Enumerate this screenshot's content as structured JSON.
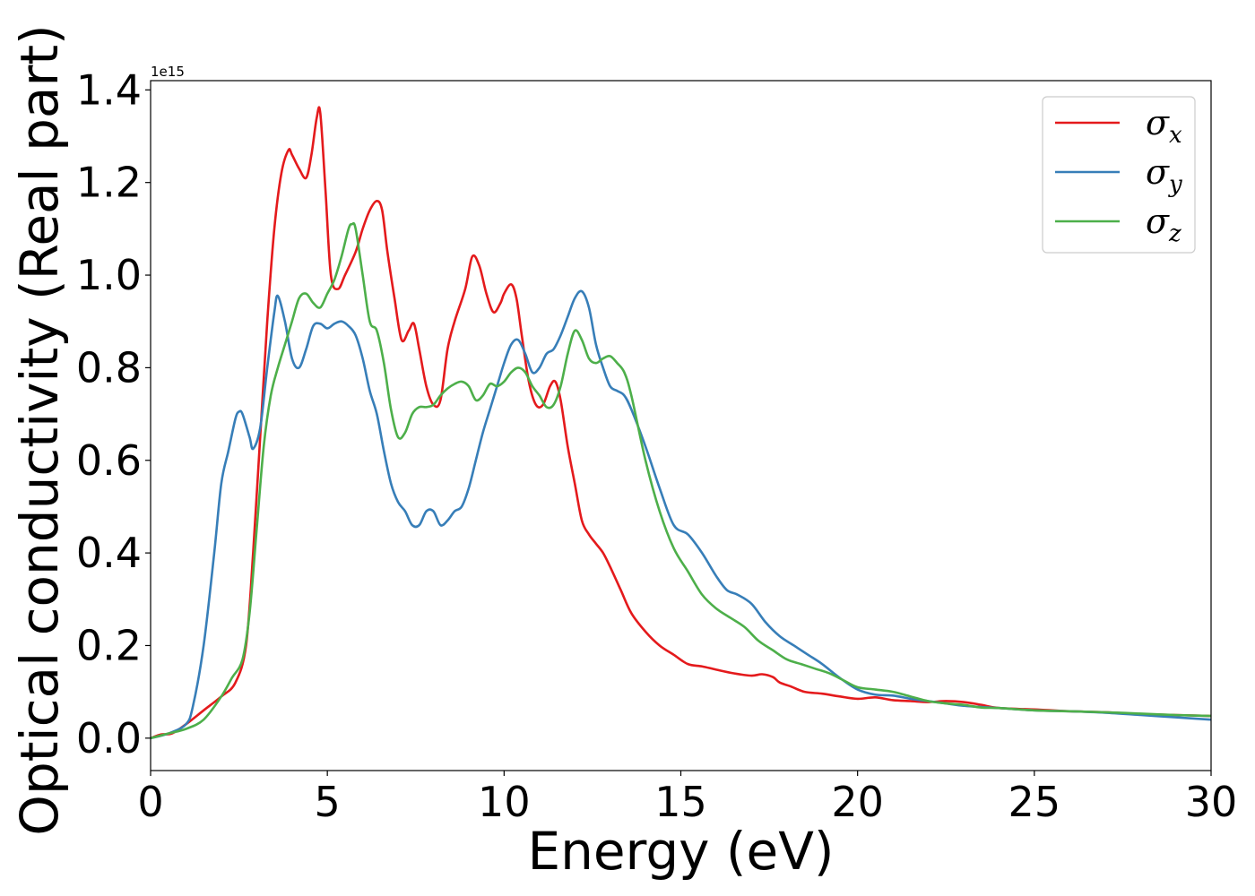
{
  "chart_data": {
    "type": "line",
    "xlabel": "Energy (eV)",
    "ylabel": "Optical conductivity (Real part)",
    "y_offset_label": "1e15",
    "xlim": [
      0,
      30
    ],
    "ylim": [
      -0.07,
      1.42
    ],
    "xticks": [
      0,
      5,
      10,
      15,
      20,
      25,
      30
    ],
    "xtick_labels": [
      "0",
      "5",
      "10",
      "15",
      "20",
      "25",
      "30"
    ],
    "yticks": [
      0.0,
      0.2,
      0.4,
      0.6,
      0.8,
      1.0,
      1.2,
      1.4
    ],
    "ytick_labels": [
      "0.0",
      "0.2",
      "0.4",
      "0.6",
      "0.8",
      "1.0",
      "1.2",
      "1.4"
    ],
    "grid": false,
    "legend_position": "top-right",
    "series": [
      {
        "name": "σx",
        "symbol": "σ",
        "subscript": "x",
        "color": "#e41a1c",
        "x": [
          0,
          0.3,
          0.6,
          1,
          1.5,
          2,
          2.4,
          2.7,
          2.9,
          3.1,
          3.3,
          3.5,
          3.7,
          3.9,
          4.0,
          4.2,
          4.4,
          4.55,
          4.7,
          4.8,
          4.95,
          5.1,
          5.3,
          5.5,
          5.8,
          6.0,
          6.2,
          6.4,
          6.55,
          6.7,
          6.9,
          7.1,
          7.3,
          7.45,
          7.6,
          7.8,
          8.0,
          8.2,
          8.4,
          8.6,
          8.9,
          9.1,
          9.3,
          9.5,
          9.7,
          9.9,
          10.0,
          10.2,
          10.35,
          10.5,
          10.7,
          10.9,
          11.1,
          11.3,
          11.45,
          11.6,
          11.8,
          12.0,
          12.2,
          12.4,
          12.6,
          12.8,
          13.0,
          13.3,
          13.6,
          14.0,
          14.4,
          14.8,
          15.2,
          15.6,
          16.0,
          16.5,
          17.0,
          17.3,
          17.6,
          17.8,
          18.1,
          18.5,
          19.0,
          19.5,
          20.0,
          20.5,
          21.0,
          21.5,
          22.0,
          22.5,
          23.0,
          23.5,
          24.0,
          25.0,
          26.0,
          27.0,
          28.0,
          29.0,
          30.0
        ],
        "values": [
          0.0,
          0.008,
          0.01,
          0.03,
          0.06,
          0.09,
          0.12,
          0.2,
          0.4,
          0.65,
          0.9,
          1.1,
          1.22,
          1.27,
          1.26,
          1.23,
          1.21,
          1.26,
          1.34,
          1.35,
          1.18,
          1.0,
          0.97,
          1.0,
          1.05,
          1.1,
          1.14,
          1.16,
          1.14,
          1.05,
          0.95,
          0.86,
          0.88,
          0.895,
          0.84,
          0.76,
          0.72,
          0.73,
          0.84,
          0.9,
          0.97,
          1.04,
          1.02,
          0.96,
          0.92,
          0.94,
          0.96,
          0.98,
          0.95,
          0.87,
          0.77,
          0.72,
          0.72,
          0.76,
          0.77,
          0.73,
          0.63,
          0.55,
          0.47,
          0.44,
          0.42,
          0.4,
          0.37,
          0.32,
          0.27,
          0.23,
          0.2,
          0.18,
          0.16,
          0.155,
          0.148,
          0.14,
          0.135,
          0.138,
          0.132,
          0.12,
          0.112,
          0.1,
          0.096,
          0.09,
          0.085,
          0.088,
          0.082,
          0.08,
          0.078,
          0.08,
          0.078,
          0.072,
          0.065,
          0.062,
          0.058,
          0.056,
          0.052,
          0.05,
          0.048
        ]
      },
      {
        "name": "σy",
        "symbol": "σ",
        "subscript": "y",
        "color": "#377eb8",
        "x": [
          0,
          0.5,
          1.0,
          1.2,
          1.5,
          1.8,
          2.0,
          2.2,
          2.4,
          2.5,
          2.6,
          2.8,
          2.9,
          3.1,
          3.3,
          3.5,
          3.6,
          3.8,
          4.0,
          4.2,
          4.4,
          4.6,
          4.8,
          5.0,
          5.2,
          5.4,
          5.6,
          5.8,
          6.0,
          6.2,
          6.4,
          6.6,
          6.8,
          7.0,
          7.2,
          7.4,
          7.6,
          7.8,
          8.0,
          8.2,
          8.4,
          8.6,
          8.8,
          9.0,
          9.2,
          9.4,
          9.6,
          9.8,
          10.0,
          10.2,
          10.4,
          10.6,
          10.8,
          11.0,
          11.2,
          11.4,
          11.6,
          11.8,
          12.0,
          12.2,
          12.4,
          12.6,
          12.8,
          13.0,
          13.2,
          13.4,
          13.6,
          14.0,
          14.4,
          14.8,
          15.2,
          15.6,
          16.0,
          16.3,
          16.6,
          17.0,
          17.4,
          17.8,
          18.2,
          18.6,
          19.0,
          19.5,
          20.0,
          20.5,
          21.0,
          21.5,
          22.0,
          22.5,
          23.0,
          24.0,
          25.0,
          26.0,
          27.0,
          28.0,
          29.0,
          30.0
        ],
        "values": [
          0.0,
          0.01,
          0.03,
          0.07,
          0.2,
          0.4,
          0.55,
          0.62,
          0.69,
          0.705,
          0.7,
          0.65,
          0.625,
          0.67,
          0.8,
          0.92,
          0.955,
          0.9,
          0.82,
          0.8,
          0.84,
          0.89,
          0.895,
          0.885,
          0.895,
          0.9,
          0.89,
          0.87,
          0.82,
          0.75,
          0.7,
          0.62,
          0.55,
          0.51,
          0.49,
          0.46,
          0.46,
          0.49,
          0.49,
          0.46,
          0.47,
          0.49,
          0.5,
          0.54,
          0.6,
          0.66,
          0.71,
          0.76,
          0.81,
          0.85,
          0.86,
          0.83,
          0.79,
          0.8,
          0.83,
          0.84,
          0.87,
          0.91,
          0.95,
          0.965,
          0.93,
          0.85,
          0.8,
          0.76,
          0.75,
          0.74,
          0.71,
          0.63,
          0.54,
          0.46,
          0.44,
          0.4,
          0.35,
          0.32,
          0.31,
          0.29,
          0.25,
          0.22,
          0.2,
          0.18,
          0.16,
          0.13,
          0.105,
          0.094,
          0.092,
          0.085,
          0.08,
          0.075,
          0.07,
          0.065,
          0.06,
          0.058,
          0.055,
          0.05,
          0.045,
          0.04
        ]
      },
      {
        "name": "σz",
        "symbol": "σ",
        "subscript": "z",
        "color": "#4daf4a",
        "x": [
          0,
          0.5,
          1.0,
          1.5,
          2.0,
          2.3,
          2.6,
          2.8,
          3.0,
          3.2,
          3.4,
          3.6,
          3.8,
          4.0,
          4.2,
          4.4,
          4.6,
          4.8,
          5.0,
          5.2,
          5.4,
          5.6,
          5.7,
          5.8,
          6.0,
          6.2,
          6.4,
          6.6,
          6.8,
          7.0,
          7.2,
          7.4,
          7.6,
          7.8,
          8.0,
          8.2,
          8.4,
          8.6,
          8.8,
          9.0,
          9.2,
          9.4,
          9.6,
          9.8,
          10.0,
          10.2,
          10.4,
          10.6,
          10.8,
          11.0,
          11.2,
          11.4,
          11.6,
          11.8,
          12.0,
          12.2,
          12.4,
          12.6,
          12.8,
          13.0,
          13.2,
          13.4,
          13.6,
          14.0,
          14.4,
          14.8,
          15.2,
          15.6,
          16.0,
          16.4,
          16.8,
          17.2,
          17.6,
          18.0,
          18.4,
          18.8,
          19.2,
          19.6,
          20.0,
          20.5,
          21.0,
          21.5,
          22.0,
          22.5,
          23.0,
          23.5,
          24.0,
          25.0,
          26.0,
          27.0,
          28.0,
          29.0,
          30.0
        ],
        "values": [
          0.0,
          0.01,
          0.02,
          0.04,
          0.09,
          0.13,
          0.17,
          0.27,
          0.45,
          0.63,
          0.74,
          0.8,
          0.85,
          0.9,
          0.95,
          0.96,
          0.94,
          0.93,
          0.96,
          0.99,
          1.04,
          1.1,
          1.11,
          1.1,
          1.0,
          0.9,
          0.88,
          0.81,
          0.71,
          0.65,
          0.66,
          0.7,
          0.715,
          0.715,
          0.72,
          0.74,
          0.755,
          0.765,
          0.77,
          0.76,
          0.73,
          0.74,
          0.765,
          0.76,
          0.77,
          0.79,
          0.8,
          0.79,
          0.76,
          0.74,
          0.715,
          0.72,
          0.76,
          0.83,
          0.88,
          0.86,
          0.82,
          0.81,
          0.82,
          0.825,
          0.81,
          0.79,
          0.74,
          0.6,
          0.49,
          0.41,
          0.36,
          0.31,
          0.28,
          0.26,
          0.24,
          0.21,
          0.19,
          0.17,
          0.16,
          0.15,
          0.14,
          0.125,
          0.11,
          0.105,
          0.1,
          0.09,
          0.08,
          0.075,
          0.072,
          0.066,
          0.065,
          0.06,
          0.058,
          0.056,
          0.053,
          0.05,
          0.048
        ]
      }
    ]
  }
}
